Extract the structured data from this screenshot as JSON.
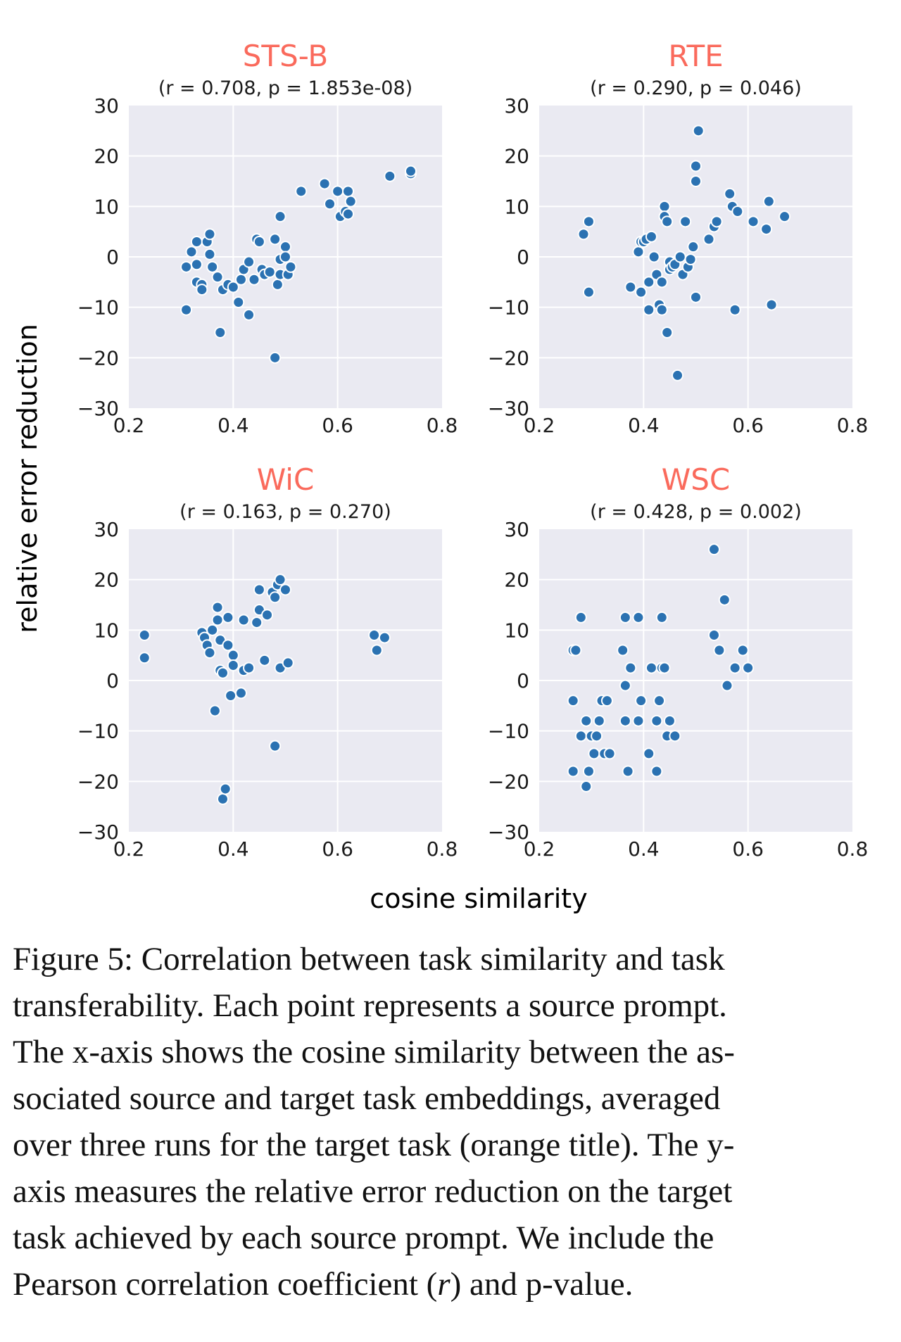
{
  "figure": {
    "shared_ylabel": "relative error reduction",
    "shared_xlabel": "cosine similarity"
  },
  "chart_data": [
    {
      "type": "scatter",
      "title": "STS-B",
      "subtitle": "(r = 0.708, p = 1.853e-08)",
      "xlim": [
        0.2,
        0.8
      ],
      "ylim": [
        -30,
        30
      ],
      "xticks": [
        "0.2",
        "0.4",
        "0.6",
        "0.8"
      ],
      "yticks": [
        "30",
        "20",
        "10",
        "0",
        "−10",
        "−20",
        "−30"
      ],
      "points": [
        [
          0.31,
          -10.5
        ],
        [
          0.31,
          -2
        ],
        [
          0.32,
          1
        ],
        [
          0.33,
          3
        ],
        [
          0.33,
          -1.5
        ],
        [
          0.33,
          -5
        ],
        [
          0.34,
          -5.5
        ],
        [
          0.34,
          -6.5
        ],
        [
          0.35,
          3
        ],
        [
          0.355,
          4.5
        ],
        [
          0.355,
          0.5
        ],
        [
          0.36,
          -2
        ],
        [
          0.37,
          -4
        ],
        [
          0.375,
          -15
        ],
        [
          0.38,
          -6.5
        ],
        [
          0.39,
          -5.5
        ],
        [
          0.4,
          -6
        ],
        [
          0.41,
          -9
        ],
        [
          0.415,
          -4.5
        ],
        [
          0.42,
          -2.5
        ],
        [
          0.43,
          -1
        ],
        [
          0.43,
          -11.5
        ],
        [
          0.44,
          -4.5
        ],
        [
          0.445,
          3.5
        ],
        [
          0.45,
          3
        ],
        [
          0.455,
          -2.5
        ],
        [
          0.46,
          -3.5
        ],
        [
          0.47,
          -3
        ],
        [
          0.48,
          3.5
        ],
        [
          0.485,
          -5.5
        ],
        [
          0.49,
          -3.5
        ],
        [
          0.49,
          -0.5
        ],
        [
          0.49,
          8
        ],
        [
          0.5,
          2
        ],
        [
          0.5,
          0
        ],
        [
          0.505,
          -3.5
        ],
        [
          0.51,
          -2
        ],
        [
          0.48,
          -20
        ],
        [
          0.53,
          13
        ],
        [
          0.575,
          14.5
        ],
        [
          0.585,
          10.5
        ],
        [
          0.6,
          13
        ],
        [
          0.605,
          8
        ],
        [
          0.615,
          9
        ],
        [
          0.62,
          13
        ],
        [
          0.62,
          8.5
        ],
        [
          0.625,
          11
        ],
        [
          0.7,
          16
        ],
        [
          0.74,
          16.5
        ],
        [
          0.74,
          17
        ]
      ]
    },
    {
      "type": "scatter",
      "title": "RTE",
      "subtitle": "(r = 0.290, p = 0.046)",
      "xlim": [
        0.2,
        0.8
      ],
      "ylim": [
        -30,
        30
      ],
      "xticks": [
        "0.2",
        "0.4",
        "0.6",
        "0.8"
      ],
      "yticks": [
        "30",
        "20",
        "10",
        "0",
        "−10",
        "−20",
        "−30"
      ],
      "points": [
        [
          0.285,
          4.5
        ],
        [
          0.295,
          7
        ],
        [
          0.295,
          -7
        ],
        [
          0.375,
          -6
        ],
        [
          0.39,
          1
        ],
        [
          0.395,
          3
        ],
        [
          0.395,
          -7
        ],
        [
          0.4,
          3
        ],
        [
          0.405,
          3.5
        ],
        [
          0.41,
          -10.5
        ],
        [
          0.41,
          -5
        ],
        [
          0.415,
          4
        ],
        [
          0.42,
          0
        ],
        [
          0.425,
          -3.5
        ],
        [
          0.43,
          -9.5
        ],
        [
          0.435,
          -5
        ],
        [
          0.435,
          -10.5
        ],
        [
          0.44,
          10
        ],
        [
          0.44,
          8
        ],
        [
          0.445,
          7
        ],
        [
          0.445,
          -15
        ],
        [
          0.45,
          -1
        ],
        [
          0.45,
          -2.5
        ],
        [
          0.455,
          -2
        ],
        [
          0.46,
          -1.5
        ],
        [
          0.465,
          -23.5
        ],
        [
          0.47,
          0
        ],
        [
          0.475,
          -3.5
        ],
        [
          0.48,
          7
        ],
        [
          0.485,
          -2
        ],
        [
          0.49,
          -0.5
        ],
        [
          0.495,
          2
        ],
        [
          0.5,
          15
        ],
        [
          0.5,
          18
        ],
        [
          0.505,
          25
        ],
        [
          0.5,
          -8
        ],
        [
          0.525,
          3.5
        ],
        [
          0.535,
          6
        ],
        [
          0.54,
          7
        ],
        [
          0.565,
          12.5
        ],
        [
          0.57,
          10
        ],
        [
          0.575,
          -10.5
        ],
        [
          0.58,
          9
        ],
        [
          0.61,
          7
        ],
        [
          0.635,
          5.5
        ],
        [
          0.64,
          11
        ],
        [
          0.645,
          -9.5
        ],
        [
          0.67,
          8
        ]
      ]
    },
    {
      "type": "scatter",
      "title": "WiC",
      "subtitle": "(r = 0.163, p = 0.270)",
      "xlim": [
        0.2,
        0.8
      ],
      "ylim": [
        -30,
        30
      ],
      "xticks": [
        "0.2",
        "0.4",
        "0.6",
        "0.8"
      ],
      "yticks": [
        "30",
        "20",
        "10",
        "0",
        "−10",
        "−20",
        "−30"
      ],
      "points": [
        [
          0.23,
          9
        ],
        [
          0.23,
          4.5
        ],
        [
          0.34,
          9.5
        ],
        [
          0.345,
          8.5
        ],
        [
          0.35,
          7
        ],
        [
          0.355,
          5.5
        ],
        [
          0.36,
          10
        ],
        [
          0.365,
          -6
        ],
        [
          0.37,
          14.5
        ],
        [
          0.37,
          12
        ],
        [
          0.375,
          8
        ],
        [
          0.375,
          2
        ],
        [
          0.38,
          1.5
        ],
        [
          0.38,
          -23.5
        ],
        [
          0.385,
          -21.5
        ],
        [
          0.39,
          7
        ],
        [
          0.39,
          12.5
        ],
        [
          0.395,
          -3
        ],
        [
          0.4,
          5
        ],
        [
          0.4,
          3
        ],
        [
          0.415,
          -2.5
        ],
        [
          0.42,
          12
        ],
        [
          0.42,
          2
        ],
        [
          0.43,
          2.5
        ],
        [
          0.445,
          11.5
        ],
        [
          0.45,
          14
        ],
        [
          0.45,
          18
        ],
        [
          0.46,
          4
        ],
        [
          0.465,
          13
        ],
        [
          0.475,
          17.5
        ],
        [
          0.48,
          16.5
        ],
        [
          0.48,
          -13
        ],
        [
          0.485,
          19
        ],
        [
          0.49,
          20
        ],
        [
          0.49,
          2.5
        ],
        [
          0.5,
          18
        ],
        [
          0.505,
          3.5
        ],
        [
          0.67,
          9
        ],
        [
          0.675,
          6
        ],
        [
          0.69,
          8.5
        ]
      ]
    },
    {
      "type": "scatter",
      "title": "WSC",
      "subtitle": "(r = 0.428, p = 0.002)",
      "xlim": [
        0.2,
        0.8
      ],
      "ylim": [
        -30,
        30
      ],
      "xticks": [
        "0.2",
        "0.4",
        "0.6",
        "0.8"
      ],
      "yticks": [
        "30",
        "20",
        "10",
        "0",
        "−10",
        "−20",
        "−30"
      ],
      "points": [
        [
          0.265,
          6
        ],
        [
          0.265,
          -18
        ],
        [
          0.265,
          -4
        ],
        [
          0.27,
          6
        ],
        [
          0.28,
          12.5
        ],
        [
          0.28,
          -11
        ],
        [
          0.29,
          -8
        ],
        [
          0.29,
          -21
        ],
        [
          0.295,
          -18
        ],
        [
          0.3,
          -11
        ],
        [
          0.305,
          -14.5
        ],
        [
          0.31,
          -11
        ],
        [
          0.315,
          -8
        ],
        [
          0.32,
          -4
        ],
        [
          0.325,
          -14.5
        ],
        [
          0.33,
          -4
        ],
        [
          0.335,
          -14.5
        ],
        [
          0.36,
          6
        ],
        [
          0.365,
          12.5
        ],
        [
          0.365,
          -8
        ],
        [
          0.365,
          -1
        ],
        [
          0.37,
          -18
        ],
        [
          0.375,
          2.5
        ],
        [
          0.39,
          12.5
        ],
        [
          0.39,
          -8
        ],
        [
          0.395,
          -4
        ],
        [
          0.41,
          -14.5
        ],
        [
          0.415,
          2.5
        ],
        [
          0.425,
          -8
        ],
        [
          0.425,
          -18
        ],
        [
          0.43,
          -4
        ],
        [
          0.435,
          12.5
        ],
        [
          0.435,
          2.5
        ],
        [
          0.44,
          2.5
        ],
        [
          0.445,
          -11
        ],
        [
          0.45,
          -8
        ],
        [
          0.46,
          -11
        ],
        [
          0.535,
          26
        ],
        [
          0.535,
          9
        ],
        [
          0.545,
          6
        ],
        [
          0.555,
          16
        ],
        [
          0.56,
          -1
        ],
        [
          0.575,
          2.5
        ],
        [
          0.59,
          6
        ],
        [
          0.6,
          2.5
        ]
      ]
    }
  ],
  "caption": {
    "lines": [
      "Figure 5: Correlation between task similarity and task",
      "transferability. Each point represents a source prompt.",
      "The x-axis shows the cosine similarity between the as-",
      "sociated source and target task embeddings, averaged",
      "over three runs for the target task (orange title). The y-",
      "axis measures the relative error reduction on the target",
      "task achieved by each source prompt. We include the"
    ],
    "last_line_prefix": "Pearson correlation coefficient (",
    "last_line_r": "r",
    "last_line_suffix": ") and p-value."
  }
}
